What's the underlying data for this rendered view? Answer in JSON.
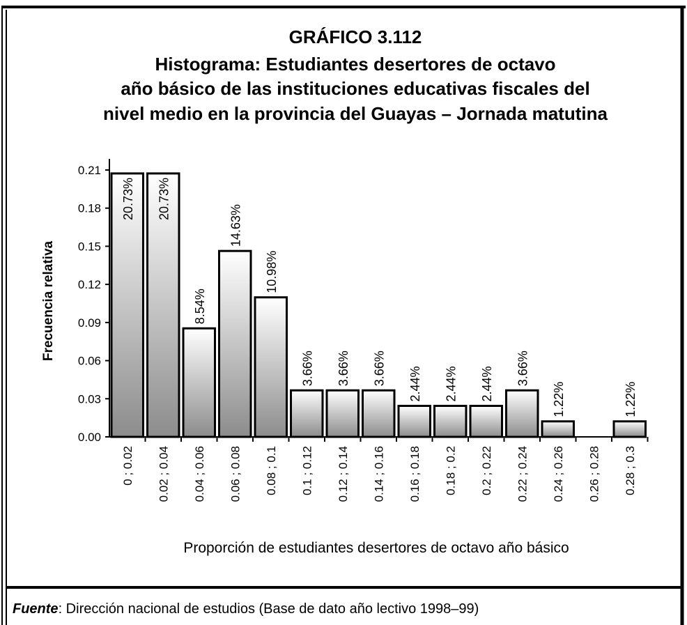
{
  "chart_data": {
    "type": "bar",
    "title": [
      "GRÁFICO 3.112",
      "Histograma: Estudiantes desertores de octavo",
      "año básico de  las instituciones educativas fiscales del",
      "nivel medio en la provincia del Guayas – Jornada matutina"
    ],
    "x_label": "Proporción de estudiantes desertores de octavo año básico",
    "y_label": "Frecuencia  relativa",
    "categories": [
      "0 ; 0.02",
      "0.02 ; 0.04",
      "0.04 ; 0.06",
      "0.06 ; 0.08",
      "0.08 ; 0.1",
      "0.1 ; 0.12",
      "0.12 ; 0.14",
      "0.14 ; 0.16",
      "0.16 ; 0.18",
      "0.18 ; 0.2",
      "0.2 ; 0.22",
      "0.22 ; 0.24",
      "0.24 ; 0.26",
      "0.26 ; 0.28",
      "0.28 ; 0.3"
    ],
    "values": [
      0.2073,
      0.2073,
      0.0854,
      0.1463,
      0.1098,
      0.0366,
      0.0366,
      0.0366,
      0.0244,
      0.0244,
      0.0244,
      0.0366,
      0.0122,
      0,
      0.0122
    ],
    "value_labels": [
      "20.73%",
      "20.73%",
      "8.54%",
      "14.63%",
      "10.98%",
      "3.66%",
      "3.66%",
      "3.66%",
      "2.44%",
      "2.44%",
      "2.44%",
      "3.66%",
      "1.22%",
      null,
      "1.22%"
    ],
    "ylim": [
      0,
      0.21
    ],
    "yticks": [
      {
        "value": 0,
        "label": "0.00"
      },
      0.03,
      0.06,
      0.09,
      0.12,
      0.15,
      0.18,
      0.21
    ],
    "color": [
      "#ffffff",
      "#8c8c8c"
    ],
    "source": {
      "label": "Fuente",
      "text": ": Dirección nacional de estudios (Base de dato año lectivo 1998–99)"
    }
  }
}
